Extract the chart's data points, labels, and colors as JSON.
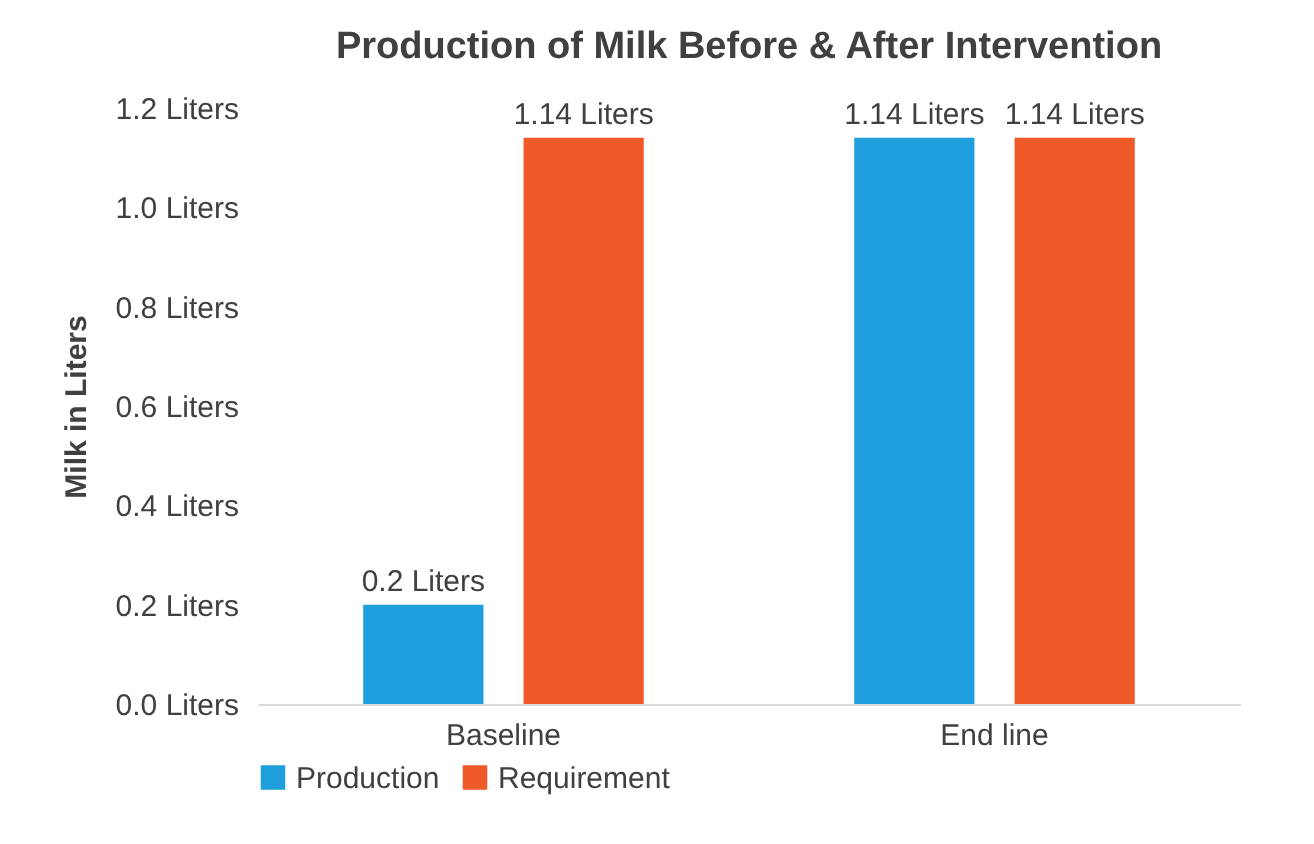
{
  "chart_data": {
    "type": "bar",
    "title": "Production of Milk Before & After Intervention",
    "ylabel": "Milk in Liters",
    "categories": [
      "Baseline",
      "End line"
    ],
    "series": [
      {
        "name": "Production",
        "color": "#1e9fdc",
        "values": [
          0.2,
          1.14
        ],
        "value_labels": [
          "0.2 Liters",
          "1.14 Liters"
        ]
      },
      {
        "name": "Requirement",
        "color": "#f05a28",
        "values": [
          1.14,
          1.14
        ],
        "value_labels": [
          "1.14 Liters",
          "1.14 Liters"
        ]
      }
    ],
    "ylim": [
      0,
      1.2
    ],
    "yticks": [
      {
        "value": 0,
        "label": "0.0 Liters"
      },
      {
        "value": 0.2,
        "label": "0.2 Liters"
      },
      {
        "value": 0.4,
        "label": "0.4 Liters"
      },
      {
        "value": 0.6,
        "label": "0.6 Liters"
      },
      {
        "value": 0.8,
        "label": "0.8 Liters"
      },
      {
        "value": 1.0,
        "label": "1.0 Liters"
      },
      {
        "value": 1.2,
        "label": "1.2 Liters"
      }
    ],
    "grid": false,
    "legend": "bottom"
  }
}
